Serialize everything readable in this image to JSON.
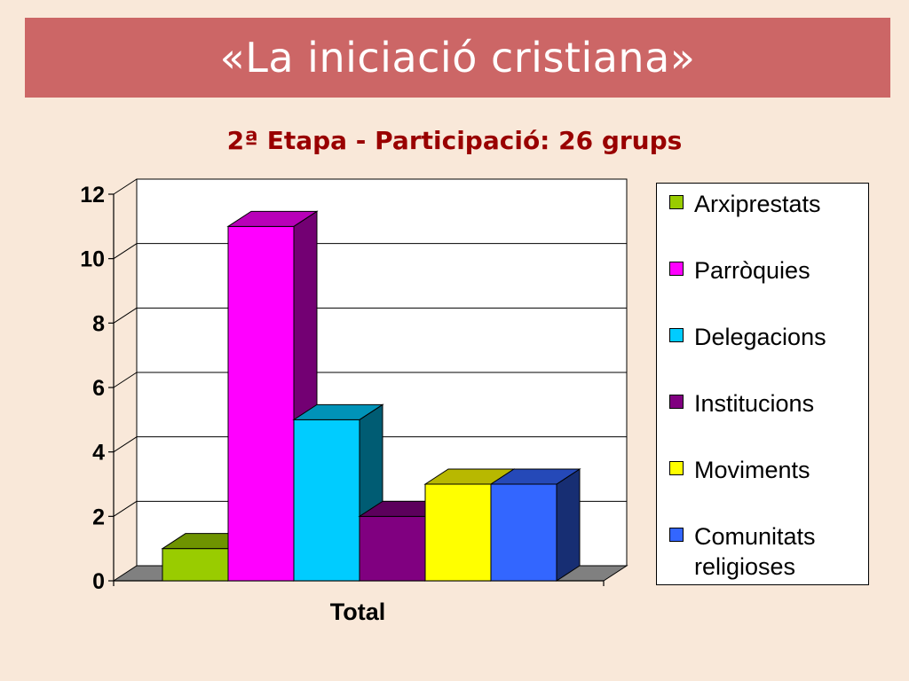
{
  "slide": {
    "title": "«La iniciació cristiana»"
  },
  "chart_data": {
    "type": "bar",
    "title": "2ª Etapa - Participació: 26 grups",
    "categories": [
      "Total"
    ],
    "series": [
      {
        "name": "Arxiprestats",
        "values": [
          1
        ],
        "color": "#99cc00"
      },
      {
        "name": "Parròquies",
        "values": [
          11
        ],
        "color": "#ff00ff"
      },
      {
        "name": "Delegacions",
        "values": [
          5
        ],
        "color": "#00ccff"
      },
      {
        "name": "Institucions",
        "values": [
          2
        ],
        "color": "#800080"
      },
      {
        "name": "Moviments",
        "values": [
          3
        ],
        "color": "#ffff00"
      },
      {
        "name": "Comunitats religioses",
        "values": [
          3
        ],
        "color": "#3366ff"
      }
    ],
    "yticks": [
      "0",
      "2",
      "4",
      "6",
      "8",
      "10",
      "12"
    ],
    "ylim": [
      0,
      12
    ],
    "xlabel": "Total",
    "ylabel": "",
    "grid": true,
    "legend_position": "right",
    "style": "3d-column"
  }
}
